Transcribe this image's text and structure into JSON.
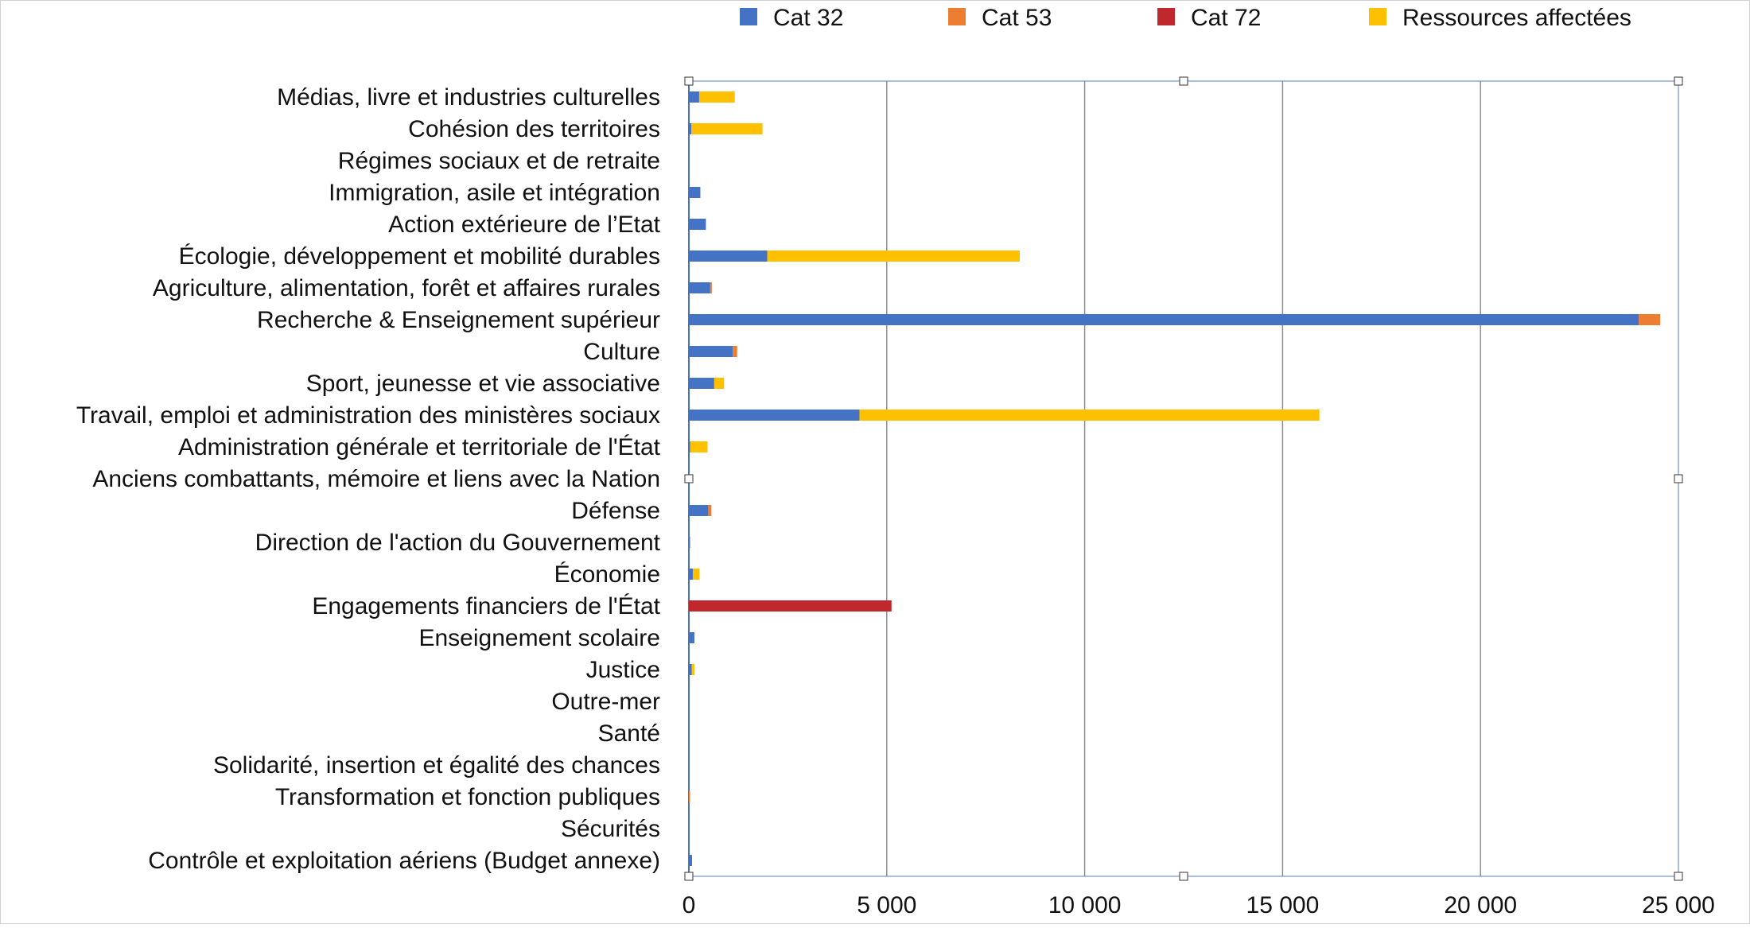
{
  "chart_data": {
    "type": "bar",
    "orientation": "horizontal",
    "stacked": true,
    "title": "",
    "xlabel": "",
    "ylabel": "",
    "xlim": [
      0,
      25000
    ],
    "xticks": [
      0,
      5000,
      10000,
      15000,
      20000,
      25000
    ],
    "xtick_labels": [
      "0",
      "5 000",
      "10 000",
      "15 000",
      "20 000",
      "25 000"
    ],
    "grid": "vertical",
    "legend_position": "top",
    "categories": [
      "Médias, livre et industries culturelles",
      "Cohésion des territoires",
      "Régimes sociaux et de retraite",
      "Immigration, asile et intégration",
      "Action extérieure de l’Etat",
      "Écologie, développement et mobilité durables",
      "Agriculture, alimentation, forêt et affaires rurales",
      "Recherche & Enseignement supérieur",
      "Culture",
      "Sport, jeunesse et vie associative",
      "Travail, emploi et administration des ministères sociaux",
      "Administration générale et territoriale de l'État",
      "Anciens combattants, mémoire et liens avec la Nation",
      "Défense",
      "Direction de l'action du Gouvernement",
      "Économie",
      "Engagements financiers de l'État",
      "Enseignement scolaire",
      "Justice",
      "Outre-mer",
      "Santé",
      "Solidarité, insertion et égalité des chances",
      "Transformation et fonction publiques",
      "Sécurités",
      "Contrôle et exploitation aériens (Budget annexe)"
    ],
    "series": [
      {
        "name": "Cat 32",
        "color": "#4472C4",
        "values": [
          260,
          60,
          0,
          290,
          430,
          1980,
          540,
          24000,
          1110,
          640,
          4310,
          30,
          0,
          490,
          30,
          100,
          0,
          140,
          60,
          0,
          0,
          0,
          0,
          0,
          80
        ]
      },
      {
        "name": "Cat 53",
        "color": "#ED7D31",
        "values": [
          0,
          0,
          0,
          0,
          0,
          0,
          40,
          540,
          110,
          0,
          0,
          0,
          0,
          80,
          0,
          0,
          0,
          0,
          20,
          0,
          0,
          0,
          30,
          0,
          0
        ]
      },
      {
        "name": "Cat 72",
        "color": "#C0282D",
        "values": [
          0,
          0,
          0,
          0,
          0,
          0,
          0,
          0,
          0,
          0,
          0,
          0,
          0,
          0,
          0,
          0,
          5120,
          0,
          0,
          0,
          0,
          0,
          0,
          0,
          0
        ]
      },
      {
        "name": "Ressources affectées",
        "color": "#FFC000",
        "values": [
          900,
          1800,
          0,
          0,
          0,
          6380,
          0,
          0,
          0,
          250,
          11620,
          440,
          0,
          0,
          0,
          170,
          0,
          0,
          60,
          0,
          0,
          0,
          0,
          0,
          0
        ]
      }
    ]
  }
}
